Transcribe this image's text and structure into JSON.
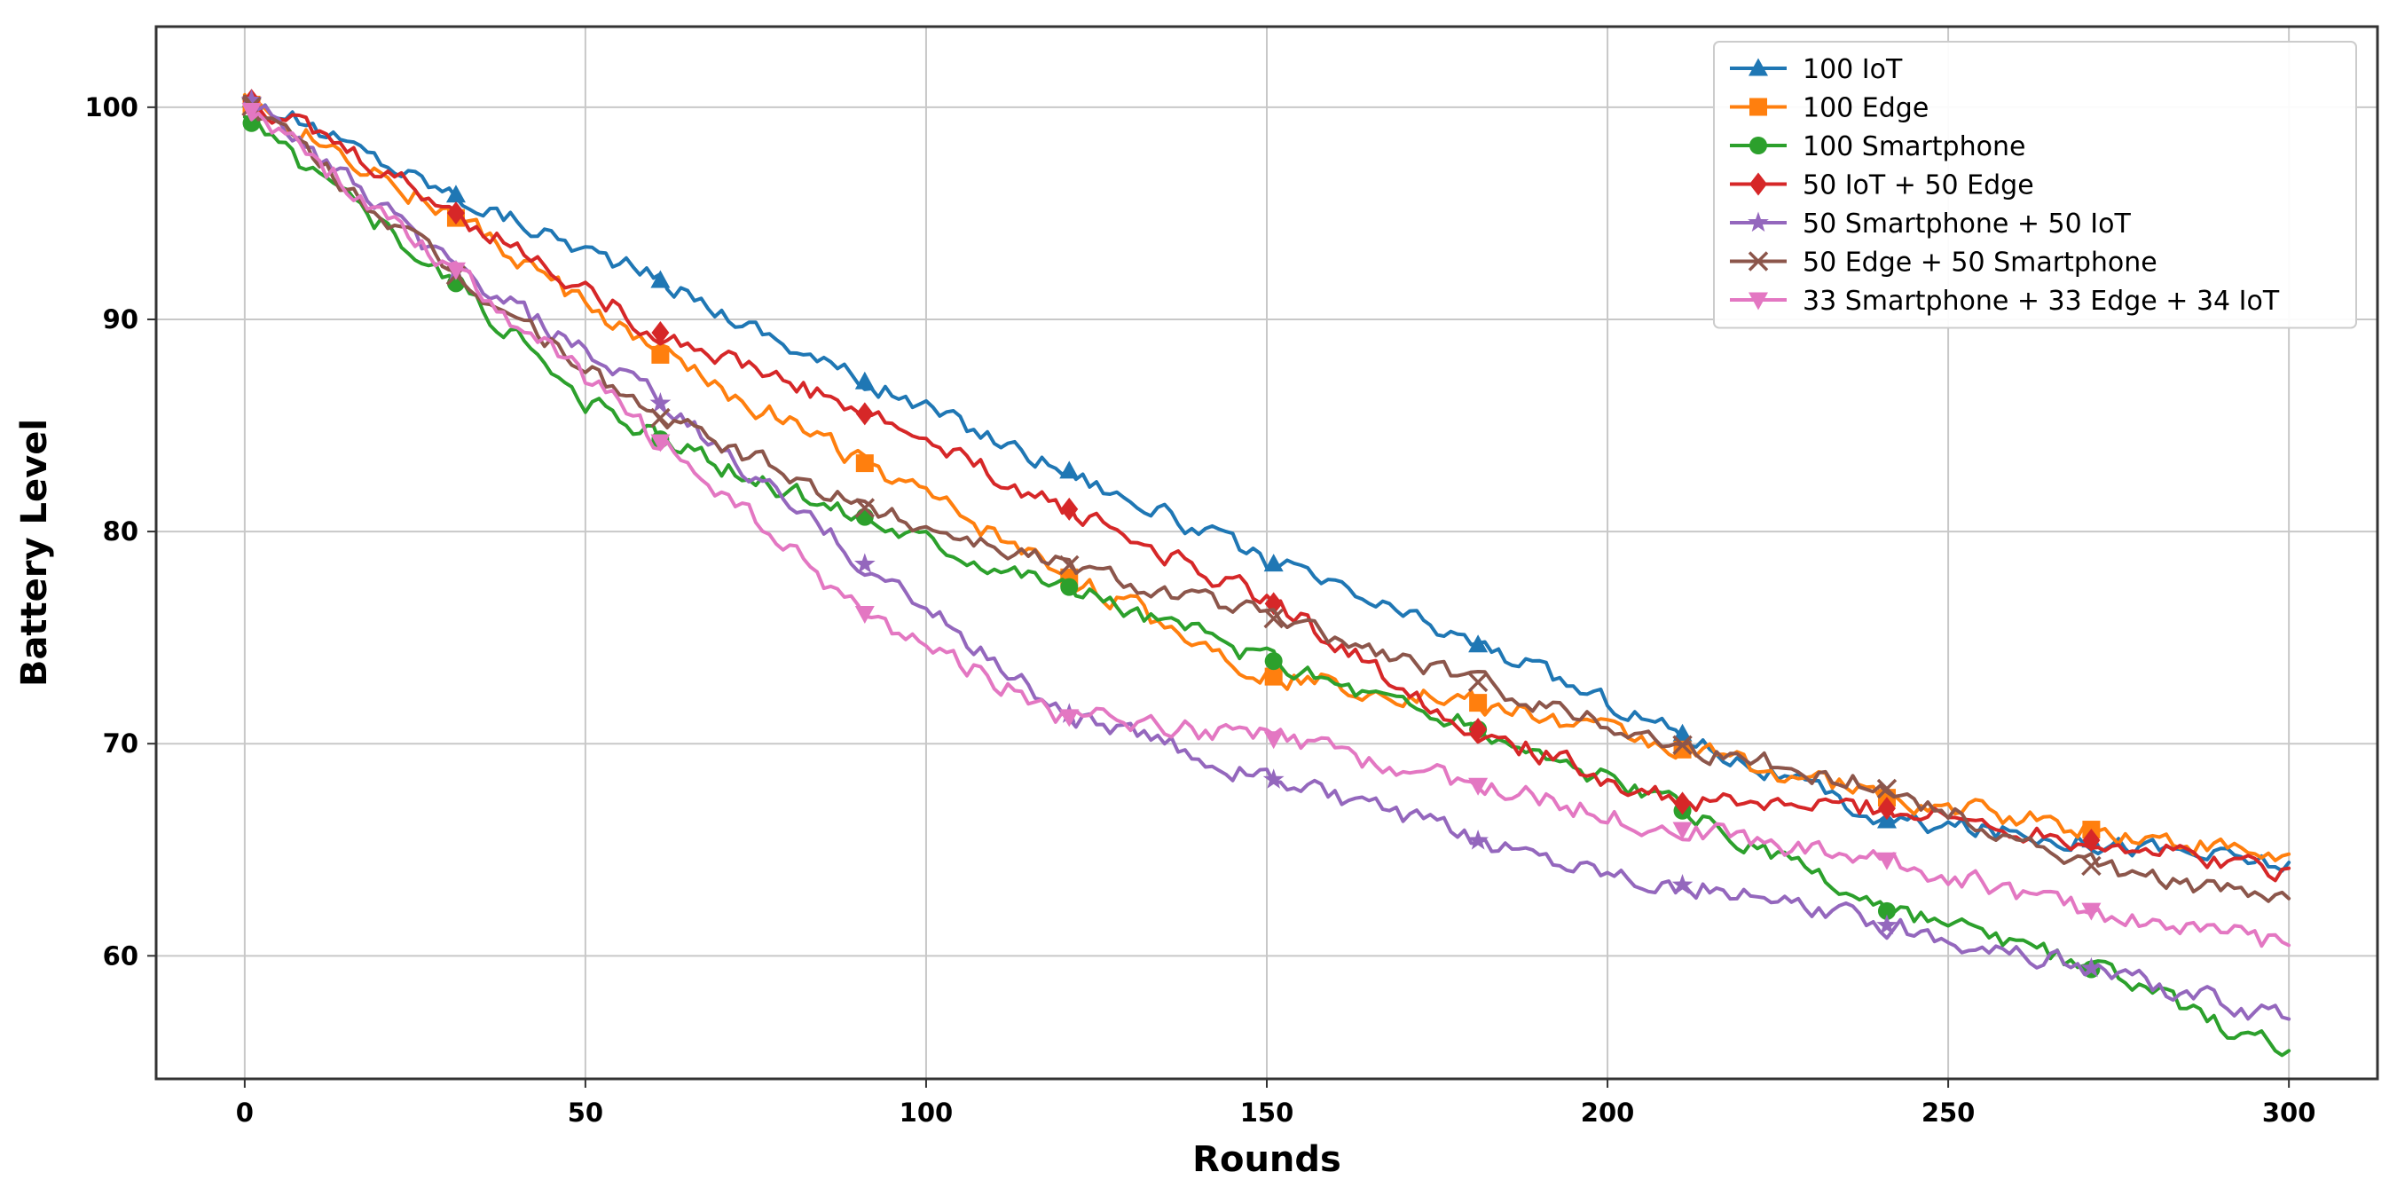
{
  "chart_data": {
    "type": "line",
    "title": "",
    "xlabel": "Rounds",
    "ylabel": "Battery Level",
    "xlim": [
      -13,
      313
    ],
    "ylim": [
      54.2,
      103.8
    ],
    "xticks": [
      0,
      50,
      100,
      150,
      200,
      250,
      300
    ],
    "xtick_labels": [
      "0",
      "50",
      "100",
      "150",
      "200",
      "250",
      "300"
    ],
    "yticks": [
      60,
      70,
      80,
      90,
      100
    ],
    "ytick_labels": [
      "60",
      "70",
      "80",
      "90",
      "100"
    ],
    "grid": true,
    "legend_position": "top-right",
    "marker_every": 30,
    "series": [
      {
        "name": "100 IoT",
        "color": "#1f77b4",
        "marker": "triangle-up",
        "noise": 0.55,
        "points": [
          [
            0,
            100.5
          ],
          [
            30,
            96
          ],
          [
            60,
            92
          ],
          [
            90,
            87.2
          ],
          [
            120,
            83
          ],
          [
            150,
            78.6
          ],
          [
            180,
            74.8
          ],
          [
            210,
            70.6
          ],
          [
            240,
            66.4
          ],
          [
            270,
            65.5
          ],
          [
            300,
            64.3
          ]
        ]
      },
      {
        "name": "100 Edge",
        "color": "#ff7f0e",
        "marker": "square",
        "noise": 0.6,
        "points": [
          [
            0,
            100.3
          ],
          [
            30,
            95
          ],
          [
            60,
            88.5
          ],
          [
            90,
            83.4
          ],
          [
            120,
            78
          ],
          [
            150,
            73.2
          ],
          [
            180,
            72
          ],
          [
            210,
            69.8
          ],
          [
            240,
            67.5
          ],
          [
            270,
            66
          ],
          [
            300,
            64.5
          ]
        ]
      },
      {
        "name": "100 Smartphone",
        "color": "#2ca02c",
        "marker": "circle",
        "noise": 0.6,
        "points": [
          [
            0,
            99.5
          ],
          [
            30,
            92
          ],
          [
            50,
            86
          ],
          [
            70,
            83
          ],
          [
            90,
            80.8
          ],
          [
            120,
            77.5
          ],
          [
            150,
            74
          ],
          [
            180,
            70.8
          ],
          [
            210,
            67
          ],
          [
            240,
            62.2
          ],
          [
            270,
            59.5
          ],
          [
            300,
            55.5
          ]
        ]
      },
      {
        "name": "50 IoT + 50 Edge",
        "color": "#d62728",
        "marker": "diamond",
        "noise": 0.6,
        "points": [
          [
            0,
            100.5
          ],
          [
            30,
            95.2
          ],
          [
            60,
            89.5
          ],
          [
            90,
            85.7
          ],
          [
            120,
            81.2
          ],
          [
            150,
            76.8
          ],
          [
            180,
            70.8
          ],
          [
            210,
            67.2
          ],
          [
            240,
            67
          ],
          [
            270,
            65.5
          ],
          [
            300,
            64
          ]
        ]
      },
      {
        "name": "50 Smartphone + 50 IoT",
        "color": "#9467bd",
        "marker": "star",
        "noise": 0.6,
        "points": [
          [
            0,
            100.6
          ],
          [
            30,
            92.5
          ],
          [
            60,
            86.3
          ],
          [
            90,
            78.7
          ],
          [
            120,
            71.5
          ],
          [
            150,
            68.4
          ],
          [
            180,
            65.5
          ],
          [
            210,
            63.4
          ],
          [
            240,
            61.5
          ],
          [
            270,
            59.5
          ],
          [
            300,
            56.9
          ]
        ]
      },
      {
        "name": "50 Edge + 50 Smartphone",
        "color": "#8c564b",
        "marker": "x",
        "noise": 0.55,
        "points": [
          [
            0,
            100.3
          ],
          [
            30,
            92.3
          ],
          [
            60,
            85.5
          ],
          [
            90,
            81.2
          ],
          [
            120,
            78.5
          ],
          [
            150,
            76
          ],
          [
            180,
            73
          ],
          [
            210,
            70
          ],
          [
            240,
            68
          ],
          [
            270,
            64.3
          ],
          [
            300,
            62.5
          ]
        ]
      },
      {
        "name": "33 Smartphone + 33 Edge + 34 IoT",
        "color": "#e377c2",
        "marker": "triangle-down",
        "noise": 0.6,
        "points": [
          [
            0,
            100.1
          ],
          [
            30,
            92.6
          ],
          [
            60,
            84.5
          ],
          [
            90,
            76.3
          ],
          [
            120,
            71.3
          ],
          [
            150,
            70.3
          ],
          [
            180,
            68.1
          ],
          [
            210,
            66
          ],
          [
            240,
            64.6
          ],
          [
            270,
            62.2
          ],
          [
            300,
            60.5
          ]
        ]
      }
    ]
  }
}
